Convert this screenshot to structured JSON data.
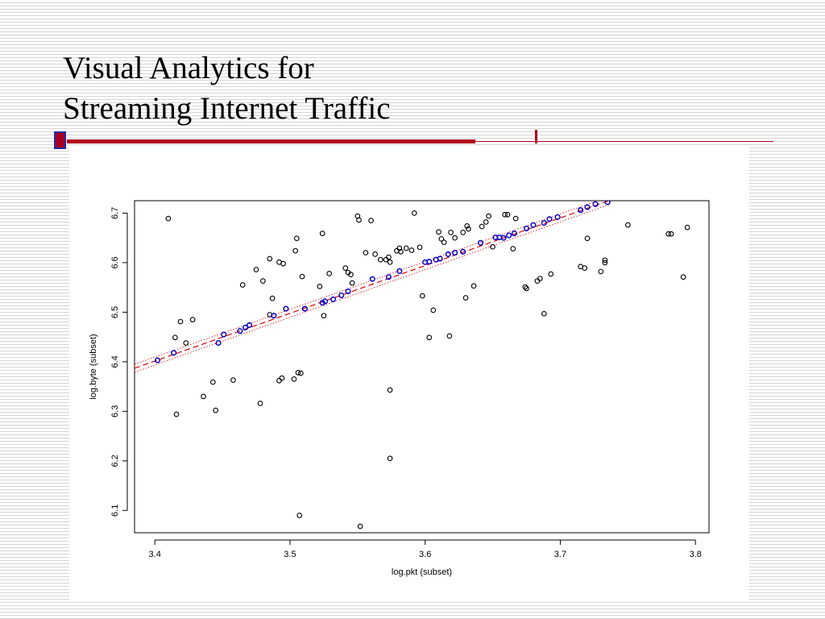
{
  "slide": {
    "title_line1": "Visual Analytics for",
    "title_line2": "Streaming Internet Traffic"
  },
  "colors": {
    "accent_red": "#b00020",
    "accent_blue": "#1d2fa8",
    "points_black": "#000000",
    "points_blue": "#0000cc",
    "fit_line": "#e00000"
  },
  "chart_data": {
    "type": "scatter",
    "xlabel": "log.pkt (subset)",
    "ylabel": "log.byte (subset)",
    "xlim": [
      3.385,
      3.81
    ],
    "ylim": [
      6.055,
      6.725
    ],
    "xticks": [
      "3.4",
      "3.5",
      "3.6",
      "3.7",
      "3.8"
    ],
    "yticks": [
      "6.1",
      "6.2",
      "6.3",
      "6.4",
      "6.5",
      "6.6",
      "6.7"
    ],
    "grid": false,
    "fit_line": {
      "style": "dashed",
      "x": [
        3.385,
        3.736
      ],
      "y": [
        6.387,
        6.725
      ]
    },
    "confidence_band": {
      "style": "dotted",
      "offset": 0.008
    },
    "series": [
      {
        "marker": "open-circle",
        "color": "#000000",
        "points": [
          [
            3.41,
            6.689
          ],
          [
            3.415,
            6.449
          ],
          [
            3.416,
            6.294
          ],
          [
            3.419,
            6.481
          ],
          [
            3.423,
            6.438
          ],
          [
            3.428,
            6.485
          ],
          [
            3.436,
            6.33
          ],
          [
            3.443,
            6.359
          ],
          [
            3.445,
            6.302
          ],
          [
            3.458,
            6.363
          ],
          [
            3.465,
            6.555
          ],
          [
            3.475,
            6.586
          ],
          [
            3.478,
            6.316
          ],
          [
            3.48,
            6.563
          ],
          [
            3.485,
            6.608
          ],
          [
            3.485,
            6.495
          ],
          [
            3.487,
            6.528
          ],
          [
            3.492,
            6.601
          ],
          [
            3.492,
            6.362
          ],
          [
            3.494,
            6.367
          ],
          [
            3.495,
            6.598
          ],
          [
            3.503,
            6.365
          ],
          [
            3.504,
            6.624
          ],
          [
            3.505,
            6.649
          ],
          [
            3.506,
            6.378
          ],
          [
            3.507,
            6.09
          ],
          [
            3.508,
            6.377
          ],
          [
            3.509,
            6.572
          ],
          [
            3.522,
            6.552
          ],
          [
            3.524,
            6.659
          ],
          [
            3.525,
            6.493
          ],
          [
            3.529,
            6.578
          ],
          [
            3.541,
            6.589
          ],
          [
            3.543,
            6.58
          ],
          [
            3.545,
            6.576
          ],
          [
            3.546,
            6.559
          ],
          [
            3.55,
            6.694
          ],
          [
            3.551,
            6.686
          ],
          [
            3.552,
            6.068
          ],
          [
            3.556,
            6.62
          ],
          [
            3.56,
            6.685
          ],
          [
            3.563,
            6.617
          ],
          [
            3.567,
            6.606
          ],
          [
            3.571,
            6.606
          ],
          [
            3.573,
            6.611
          ],
          [
            3.574,
            6.601
          ],
          [
            3.574,
            6.343
          ],
          [
            3.574,
            6.205
          ],
          [
            3.579,
            6.624
          ],
          [
            3.581,
            6.629
          ],
          [
            3.582,
            6.622
          ],
          [
            3.586,
            6.629
          ],
          [
            3.59,
            6.625
          ],
          [
            3.592,
            6.7
          ],
          [
            3.596,
            6.631
          ],
          [
            3.598,
            6.533
          ],
          [
            3.603,
            6.449
          ],
          [
            3.606,
            6.504
          ],
          [
            3.61,
            6.662
          ],
          [
            3.612,
            6.648
          ],
          [
            3.614,
            6.641
          ],
          [
            3.618,
            6.452
          ],
          [
            3.619,
            6.661
          ],
          [
            3.622,
            6.65
          ],
          [
            3.628,
            6.661
          ],
          [
            3.63,
            6.529
          ],
          [
            3.631,
            6.674
          ],
          [
            3.632,
            6.668
          ],
          [
            3.636,
            6.553
          ],
          [
            3.642,
            6.673
          ],
          [
            3.645,
            6.682
          ],
          [
            3.647,
            6.694
          ],
          [
            3.65,
            6.632
          ],
          [
            3.659,
            6.697
          ],
          [
            3.661,
            6.697
          ],
          [
            3.665,
            6.628
          ],
          [
            3.667,
            6.689
          ],
          [
            3.674,
            6.551
          ],
          [
            3.675,
            6.548
          ],
          [
            3.683,
            6.563
          ],
          [
            3.685,
            6.568
          ],
          [
            3.688,
            6.497
          ],
          [
            3.693,
            6.577
          ],
          [
            3.715,
            6.592
          ],
          [
            3.718,
            6.589
          ],
          [
            3.72,
            6.649
          ],
          [
            3.73,
            6.582
          ],
          [
            3.733,
            6.6
          ],
          [
            3.733,
            6.605
          ],
          [
            3.75,
            6.676
          ],
          [
            3.78,
            6.658
          ],
          [
            3.782,
            6.658
          ],
          [
            3.791,
            6.571
          ],
          [
            3.794,
            6.671
          ]
        ]
      },
      {
        "marker": "open-circle",
        "color": "#0000cc",
        "points": [
          [
            3.402,
            6.403
          ],
          [
            3.414,
            6.418
          ],
          [
            3.447,
            6.438
          ],
          [
            3.451,
            6.455
          ],
          [
            3.463,
            6.462
          ],
          [
            3.467,
            6.469
          ],
          [
            3.47,
            6.474
          ],
          [
            3.488,
            6.493
          ],
          [
            3.497,
            6.507
          ],
          [
            3.511,
            6.507
          ],
          [
            3.524,
            6.519
          ],
          [
            3.526,
            6.522
          ],
          [
            3.532,
            6.526
          ],
          [
            3.538,
            6.534
          ],
          [
            3.543,
            6.542
          ],
          [
            3.561,
            6.567
          ],
          [
            3.573,
            6.571
          ],
          [
            3.581,
            6.583
          ],
          [
            3.6,
            6.601
          ],
          [
            3.603,
            6.602
          ],
          [
            3.608,
            6.606
          ],
          [
            3.611,
            6.608
          ],
          [
            3.617,
            6.617
          ],
          [
            3.622,
            6.62
          ],
          [
            3.628,
            6.622
          ],
          [
            3.641,
            6.64
          ],
          [
            3.652,
            6.651
          ],
          [
            3.655,
            6.651
          ],
          [
            3.658,
            6.65
          ],
          [
            3.662,
            6.655
          ],
          [
            3.666,
            6.659
          ],
          [
            3.675,
            6.669
          ],
          [
            3.68,
            6.676
          ],
          [
            3.688,
            6.68
          ],
          [
            3.692,
            6.688
          ],
          [
            3.698,
            6.692
          ],
          [
            3.715,
            6.706
          ],
          [
            3.72,
            6.712
          ],
          [
            3.726,
            6.718
          ],
          [
            3.735,
            6.722
          ]
        ]
      }
    ]
  }
}
